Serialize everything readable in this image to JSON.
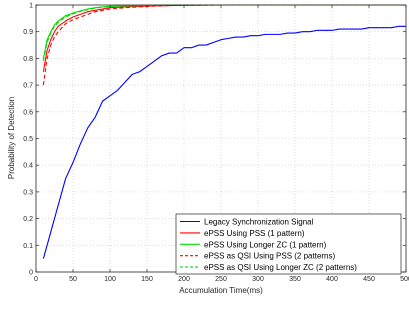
{
  "chart_data": {
    "type": "line",
    "title": "",
    "xlabel": "Accumulation Time(ms)",
    "ylabel": "Probability of Detection",
    "xlim": [
      0,
      500
    ],
    "ylim": [
      0,
      1
    ],
    "xticks": [
      0,
      50,
      100,
      150,
      200,
      250,
      300,
      350,
      400,
      450,
      500
    ],
    "yticks": [
      0,
      0.1,
      0.2,
      0.3,
      0.4,
      0.5,
      0.6,
      0.7,
      0.8,
      0.9,
      1
    ],
    "grid": true,
    "legend_position": "bottom-right",
    "series": [
      {
        "name": "Legacy Synchronization Signal",
        "color": "#0000ff",
        "dash": "solid",
        "x": [
          10,
          20,
          30,
          40,
          50,
          60,
          70,
          80,
          90,
          100,
          110,
          120,
          130,
          140,
          150,
          160,
          170,
          180,
          190,
          200,
          210,
          220,
          230,
          240,
          250,
          260,
          270,
          280,
          290,
          300,
          310,
          320,
          330,
          340,
          350,
          360,
          370,
          380,
          390,
          400,
          410,
          420,
          430,
          440,
          450,
          460,
          470,
          480,
          490,
          500
        ],
        "values": [
          0.05,
          0.15,
          0.25,
          0.35,
          0.41,
          0.48,
          0.54,
          0.58,
          0.64,
          0.66,
          0.68,
          0.71,
          0.74,
          0.75,
          0.77,
          0.79,
          0.81,
          0.82,
          0.82,
          0.84,
          0.84,
          0.85,
          0.85,
          0.86,
          0.87,
          0.875,
          0.88,
          0.88,
          0.885,
          0.885,
          0.89,
          0.89,
          0.89,
          0.895,
          0.895,
          0.9,
          0.9,
          0.905,
          0.905,
          0.905,
          0.91,
          0.91,
          0.91,
          0.91,
          0.915,
          0.915,
          0.915,
          0.915,
          0.92,
          0.92
        ]
      },
      {
        "name": "ePSS Using PSS (1 pattern)",
        "color": "#ff0000",
        "dash": "solid",
        "x": [
          10,
          15,
          20,
          25,
          30,
          40,
          50,
          60,
          70,
          80,
          90,
          100,
          120,
          140,
          160,
          180,
          200,
          250,
          300,
          350,
          400,
          450,
          500
        ],
        "values": [
          0.75,
          0.83,
          0.87,
          0.9,
          0.92,
          0.94,
          0.955,
          0.965,
          0.975,
          0.98,
          0.985,
          0.99,
          0.993,
          0.995,
          0.997,
          0.998,
          0.999,
          1.0,
          1.0,
          1.0,
          1.0,
          1.0,
          1.0
        ]
      },
      {
        "name": "ePSS Using Longer ZC (1 pattern)",
        "color": "#00dd00",
        "dash": "solid",
        "x": [
          10,
          15,
          20,
          25,
          30,
          40,
          50,
          60,
          70,
          80,
          90,
          100,
          120,
          140,
          160,
          180,
          200,
          250,
          300,
          350,
          400,
          450,
          500
        ],
        "values": [
          0.8,
          0.87,
          0.9,
          0.925,
          0.94,
          0.96,
          0.97,
          0.978,
          0.985,
          0.99,
          0.993,
          0.995,
          0.997,
          0.998,
          0.999,
          1.0,
          1.0,
          1.0,
          1.0,
          1.0,
          1.0,
          1.0,
          1.0
        ]
      },
      {
        "name": "ePSS as QSI Using PSS (2 patterns)",
        "color": "#ff0000",
        "dash": "dashed",
        "x": [
          10,
          15,
          20,
          25,
          30,
          40,
          50,
          60,
          70,
          80,
          90,
          100,
          120,
          140,
          160,
          180,
          200,
          250,
          300,
          350,
          400,
          450,
          500
        ],
        "values": [
          0.7,
          0.8,
          0.85,
          0.88,
          0.9,
          0.93,
          0.945,
          0.955,
          0.965,
          0.975,
          0.98,
          0.985,
          0.99,
          0.993,
          0.996,
          0.998,
          0.999,
          1.0,
          1.0,
          1.0,
          1.0,
          1.0,
          1.0
        ]
      },
      {
        "name": "ePSS as QSI Using Longer ZC (2 patterns)",
        "color": "#00dd00",
        "dash": "dashed",
        "x": [
          10,
          15,
          20,
          25,
          30,
          40,
          50,
          60,
          70,
          80,
          90,
          100,
          120,
          140,
          160,
          180,
          200,
          250,
          300,
          350,
          400,
          450,
          500
        ],
        "values": [
          0.79,
          0.86,
          0.895,
          0.92,
          0.935,
          0.955,
          0.967,
          0.976,
          0.983,
          0.988,
          0.992,
          0.994,
          0.996,
          0.998,
          0.999,
          1.0,
          1.0,
          1.0,
          1.0,
          1.0,
          1.0,
          1.0,
          1.0
        ]
      }
    ]
  }
}
